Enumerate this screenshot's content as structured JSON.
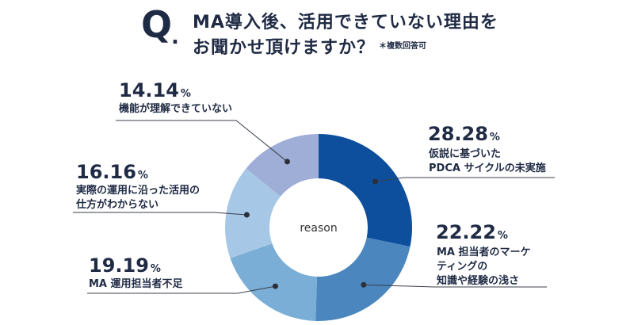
{
  "header": {
    "q_letter": "Q",
    "q_dot": ".",
    "title_line1": "MA導入後、活用できていない理由を",
    "title_line2": "お聞かせ頂けますか？",
    "note": "＊複数回答可"
  },
  "chart_data": {
    "type": "pie",
    "donut": true,
    "center_label": "reason",
    "percent_sign": "%",
    "slices": [
      {
        "value": 28.28,
        "value_label": "28.28",
        "label_lines": [
          "仮説に基づいた",
          "PDCA サイクルの未実施"
        ],
        "color": "#0d4f9c"
      },
      {
        "value": 22.22,
        "value_label": "22.22",
        "label_lines": [
          "MA 担当者のマーケ",
          "ティングの",
          "知識や経験の浅さ"
        ],
        "color": "#4b86bf"
      },
      {
        "value": 19.19,
        "value_label": "19.19",
        "label_lines": [
          "MA 運用担当者不足"
        ],
        "color": "#7aaed6"
      },
      {
        "value": 16.16,
        "value_label": "16.16",
        "label_lines": [
          "実際の運用に沿った活用の",
          "仕方がわからない"
        ],
        "color": "#a6c8e6"
      },
      {
        "value": 14.14,
        "value_label": "14.14",
        "label_lines": [
          "機能が理解できていない"
        ],
        "color": "#9faed6"
      }
    ]
  }
}
